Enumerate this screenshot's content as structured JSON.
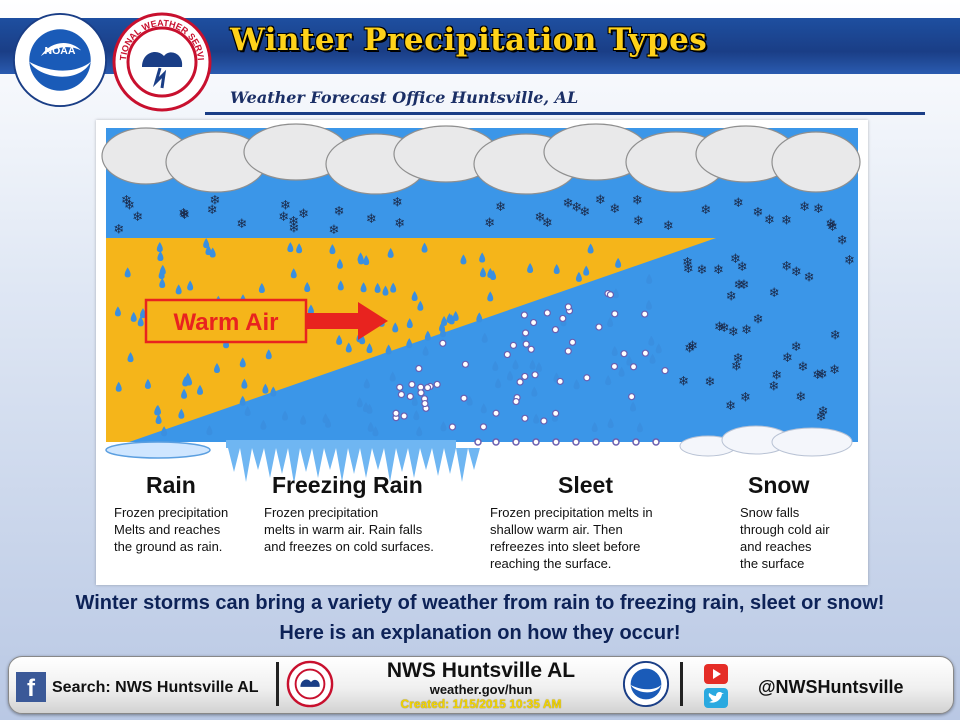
{
  "header": {
    "title": "Winter Precipitation Types",
    "subtitle": "Weather Forecast Office Huntsville, AL",
    "noaa_logo_text": "NOAA",
    "nws_logo_text": "NATIONAL WEATHER SERVICE"
  },
  "diagram": {
    "arrow_label": "Warm Air",
    "types": [
      {
        "name": "Rain",
        "description": "Frozen precipitation\nMelts and reaches\nthe ground as rain."
      },
      {
        "name": "Freezing Rain",
        "description": "Frozen precipitation\nmelts in warm air. Rain falls\nand freezes on cold surfaces."
      },
      {
        "name": "Sleet",
        "description": "Frozen precipitation melts in\nshallow warm air. Then\nrefreezes into sleet before\nreaching the surface."
      },
      {
        "name": "Snow",
        "description": "Snow falls\nthrough cold air\nand reaches\nthe surface"
      }
    ]
  },
  "message": {
    "line1": "Winter storms can bring a variety of weather from rain to freezing rain, sleet or snow!",
    "line2": "Here is an explanation on how they occur!"
  },
  "footer": {
    "facebook_text": "Search: NWS Huntsville AL",
    "office_name": "NWS Huntsville AL",
    "website": "weather.gov/hun",
    "created": "Created: 1/15/2015 10:35 AM",
    "twitter_handle": "@NWSHuntsville",
    "facebook_icon": "facebook-icon",
    "youtube_icon": "youtube-icon",
    "twitter_icon": "twitter-icon"
  },
  "colors": {
    "header_band": "#1e4fa0",
    "title_yellow": "#ffd21a",
    "warm_air": "#f5b51a",
    "sky_blue": "#3b96e8",
    "rain_drop": "#3a8fe0",
    "arrow_red": "#e8231f",
    "message_blue": "#0d2257"
  }
}
